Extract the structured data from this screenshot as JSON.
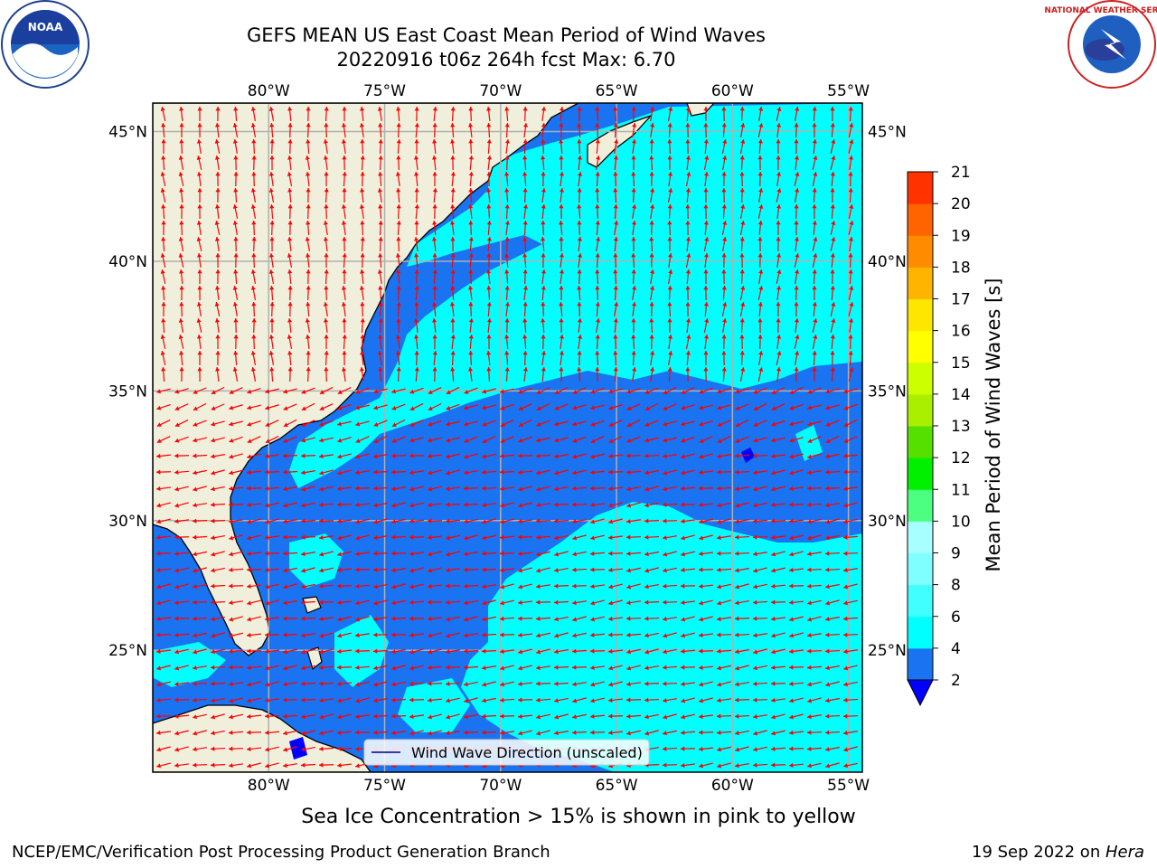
{
  "title": {
    "line1": "GEFS MEAN US East Coast Mean Period of Wind Waves",
    "line2": "20220916 t06z 264h fcst   Max: 6.70"
  },
  "logos": {
    "noaa_text": "NOAA",
    "nws_text": "NATIONAL WEATHER SERVICE"
  },
  "map": {
    "lon_labels": [
      "80°W",
      "75°W",
      "70°W",
      "65°W",
      "60°W",
      "55°W"
    ],
    "lat_labels": [
      "45°N",
      "40°N",
      "35°N",
      "30°N",
      "25°N"
    ],
    "lon_values": [
      -80,
      -75,
      -70,
      -65,
      -60,
      -55
    ],
    "lat_values": [
      45,
      40,
      35,
      30,
      25
    ],
    "extent": {
      "lon": [
        -85,
        -54.4
      ],
      "lat": [
        20.3,
        46.1
      ]
    },
    "legend_label": "Wind Wave Direction (unscaled)",
    "colors": {
      "land": "#efefdc",
      "ocean_low": "#1a73f0",
      "ocean_mid": "#00ffff",
      "ocean_ice": "#0000ff",
      "arrow": "#ff0000",
      "grid": "#b0b0b0"
    }
  },
  "colorbar": {
    "label": "Mean Period of Wind Waves [s]",
    "ticks": [
      "2",
      "4",
      "6",
      "8",
      "9",
      "10",
      "11",
      "12",
      "13",
      "14",
      "15",
      "16",
      "17",
      "18",
      "19",
      "20",
      "21"
    ],
    "colors": [
      "#1a73f0",
      "#00ffff",
      "#42ffff",
      "#7fffff",
      "#a8ffff",
      "#4dff80",
      "#00f000",
      "#55e000",
      "#aaee00",
      "#ccff00",
      "#ffff00",
      "#ffe600",
      "#ffb400",
      "#ff8c00",
      "#ff6400",
      "#ff3200",
      "#ff0000"
    ],
    "under_color": "#0000ff"
  },
  "caption": "Sea Ice Concentration > 15% is shown in pink to yellow",
  "footer": {
    "left": "NCEP/EMC/Verification Post Processing Product Generation Branch",
    "right_prefix": "19 Sep 2022 on ",
    "right_host": "Hera"
  }
}
